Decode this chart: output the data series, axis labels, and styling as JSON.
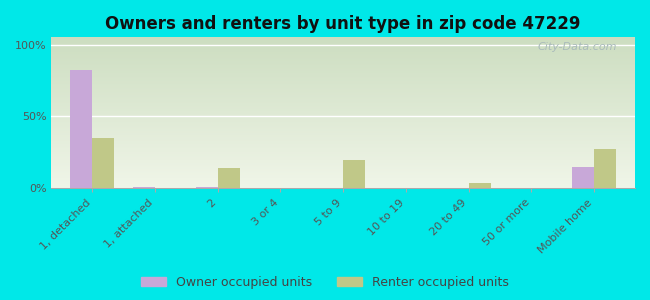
{
  "title": "Owners and renters by unit type in zip code 47229",
  "categories": [
    "1, detached",
    "1, attached",
    "2",
    "3 or 4",
    "5 to 9",
    "10 to 19",
    "20 to 49",
    "50 or more",
    "Mobile home"
  ],
  "owner_values": [
    82,
    1,
    1,
    0,
    0,
    0,
    0,
    0,
    15
  ],
  "renter_values": [
    35,
    0,
    14,
    0,
    20,
    0,
    4,
    0,
    27
  ],
  "owner_color": "#c8a8d8",
  "renter_color": "#c0c888",
  "fig_bg_color": "#00e8e8",
  "plot_bg_top": "#ccddc0",
  "plot_bg_bottom": "#f0f5e8",
  "ytick_labels": [
    "0%",
    "50%",
    "100%"
  ],
  "ytick_values": [
    0,
    50,
    100
  ],
  "ylim": [
    0,
    105
  ],
  "watermark": "City-Data.com",
  "legend_owner": "Owner occupied units",
  "legend_renter": "Renter occupied units",
  "bar_width": 0.35,
  "title_fontsize": 12,
  "tick_fontsize": 8,
  "legend_fontsize": 9
}
